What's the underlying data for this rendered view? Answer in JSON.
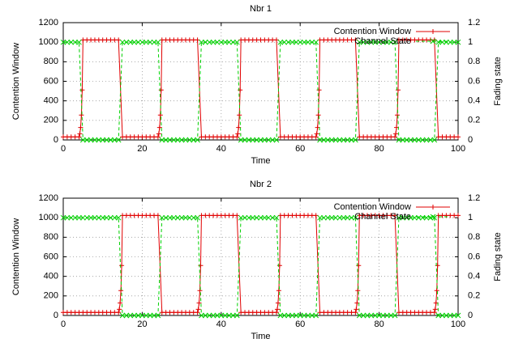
{
  "chart_data": [
    {
      "type": "line",
      "title": "Nbr 1",
      "xlabel": "Time",
      "ylabel": "Contention Window",
      "y2label": "Fading state",
      "xlim": [
        0,
        100
      ],
      "xticks": [
        0,
        20,
        40,
        60,
        80,
        100
      ],
      "ylim": [
        0,
        1200
      ],
      "yticks": [
        0,
        200,
        400,
        600,
        800,
        1000,
        1200
      ],
      "y2lim": [
        0,
        1.2
      ],
      "y2ticks": [
        0,
        0.2,
        0.4,
        0.6,
        0.8,
        1,
        1.2
      ],
      "grid": true,
      "legend": "upper right",
      "series": [
        {
          "name": "Contention Window",
          "color": "#e00000",
          "marker": "plus",
          "dash": false,
          "x": [
            0,
            1,
            2,
            3,
            4,
            4.2,
            4.4,
            4.6,
            4.8,
            5,
            6,
            7,
            8,
            9,
            10,
            11,
            12,
            13,
            14,
            15,
            16,
            17,
            18,
            19,
            20,
            21,
            22,
            23,
            24,
            24.2,
            24.4,
            24.6,
            24.8,
            25,
            26,
            27,
            28,
            29,
            30,
            31,
            32,
            33,
            34,
            35,
            36,
            37,
            38,
            39,
            40,
            41,
            42,
            43,
            44,
            44.2,
            44.4,
            44.6,
            44.8,
            45,
            46,
            47,
            48,
            49,
            50,
            51,
            52,
            53,
            54,
            55,
            56,
            57,
            58,
            59,
            60,
            61,
            62,
            63,
            64,
            64.2,
            64.4,
            64.6,
            64.8,
            65,
            66,
            67,
            68,
            69,
            70,
            71,
            72,
            73,
            74,
            75,
            76,
            77,
            78,
            79,
            80,
            81,
            82,
            83,
            84,
            84.2,
            84.4,
            84.6,
            84.8,
            85,
            86,
            87,
            88,
            89,
            90,
            91,
            92,
            93,
            94,
            95,
            96,
            97,
            98,
            99,
            100
          ],
          "values": [
            31,
            31,
            31,
            31,
            31,
            63,
            127,
            255,
            511,
            1023,
            1023,
            1023,
            1023,
            1023,
            1023,
            1023,
            1023,
            1023,
            1023,
            31,
            31,
            31,
            31,
            31,
            31,
            31,
            31,
            31,
            31,
            63,
            127,
            255,
            511,
            1023,
            1023,
            1023,
            1023,
            1023,
            1023,
            1023,
            1023,
            1023,
            1023,
            31,
            31,
            31,
            31,
            31,
            31,
            31,
            31,
            31,
            31,
            63,
            127,
            255,
            511,
            1023,
            1023,
            1023,
            1023,
            1023,
            1023,
            1023,
            1023,
            1023,
            1023,
            31,
            31,
            31,
            31,
            31,
            31,
            31,
            31,
            31,
            31,
            63,
            127,
            255,
            511,
            1023,
            1023,
            1023,
            1023,
            1023,
            1023,
            1023,
            1023,
            1023,
            1023,
            31,
            31,
            31,
            31,
            31,
            31,
            31,
            31,
            31,
            31,
            63,
            127,
            255,
            511,
            1023,
            1023,
            1023,
            1023,
            1023,
            1023,
            1023,
            1023,
            1023,
            1023,
            31,
            31,
            31,
            31,
            31,
            31
          ]
        },
        {
          "name": "Channel State",
          "color": "#00d000",
          "marker": "x",
          "dash": true,
          "axis": "y2",
          "x": [
            0,
            1,
            2,
            3,
            4,
            5,
            6,
            7,
            8,
            9,
            10,
            11,
            12,
            13,
            14,
            15,
            16,
            17,
            18,
            19,
            20,
            21,
            22,
            23,
            24,
            25,
            26,
            27,
            28,
            29,
            30,
            31,
            32,
            33,
            34,
            35,
            36,
            37,
            38,
            39,
            40,
            41,
            42,
            43,
            44,
            45,
            46,
            47,
            48,
            49,
            50,
            51,
            52,
            53,
            54,
            55,
            56,
            57,
            58,
            59,
            60,
            61,
            62,
            63,
            64,
            65,
            66,
            67,
            68,
            69,
            70,
            71,
            72,
            73,
            74,
            75,
            76,
            77,
            78,
            79,
            80,
            81,
            82,
            83,
            84,
            85,
            86,
            87,
            88,
            89,
            90,
            91,
            92,
            93,
            94,
            95,
            96,
            97,
            98,
            99,
            100
          ],
          "values": [
            1,
            1,
            1,
            1,
            1,
            0,
            0,
            0,
            0,
            0,
            0,
            0,
            0,
            0,
            0,
            1,
            1,
            1,
            1,
            1,
            1,
            1,
            1,
            1,
            1,
            0,
            0,
            0,
            0,
            0,
            0,
            0,
            0,
            0,
            0,
            1,
            1,
            1,
            1,
            1,
            1,
            1,
            1,
            1,
            1,
            0,
            0,
            0,
            0,
            0,
            0,
            0,
            0,
            0,
            0,
            1,
            1,
            1,
            1,
            1,
            1,
            1,
            1,
            1,
            1,
            0,
            0,
            0,
            0,
            0,
            0,
            0,
            0,
            0,
            0,
            1,
            1,
            1,
            1,
            1,
            1,
            1,
            1,
            1,
            1,
            0,
            0,
            0,
            0,
            0,
            0,
            0,
            0,
            0,
            0,
            1,
            1,
            1,
            1,
            1,
            1
          ]
        }
      ]
    },
    {
      "type": "line",
      "title": "Nbr 2",
      "xlabel": "Time",
      "ylabel": "Contention Window",
      "y2label": "Fading state",
      "xlim": [
        0,
        100
      ],
      "xticks": [
        0,
        20,
        40,
        60,
        80,
        100
      ],
      "ylim": [
        0,
        1200
      ],
      "yticks": [
        0,
        200,
        400,
        600,
        800,
        1000,
        1200
      ],
      "y2lim": [
        0,
        1.2
      ],
      "y2ticks": [
        0,
        0.2,
        0.4,
        0.6,
        0.8,
        1,
        1.2
      ],
      "grid": true,
      "legend": "upper right",
      "series": [
        {
          "name": "Contention Window",
          "color": "#e00000",
          "marker": "plus",
          "dash": false,
          "x": [
            0,
            1,
            2,
            3,
            4,
            5,
            6,
            7,
            8,
            9,
            10,
            11,
            12,
            13,
            14,
            14.2,
            14.4,
            14.6,
            14.8,
            15,
            16,
            17,
            18,
            19,
            20,
            21,
            22,
            23,
            24,
            25,
            26,
            27,
            28,
            29,
            30,
            31,
            32,
            33,
            34,
            34.2,
            34.4,
            34.6,
            34.8,
            35,
            36,
            37,
            38,
            39,
            40,
            41,
            42,
            43,
            44,
            45,
            46,
            47,
            48,
            49,
            50,
            51,
            52,
            53,
            54,
            54.2,
            54.4,
            54.6,
            54.8,
            55,
            56,
            57,
            58,
            59,
            60,
            61,
            62,
            63,
            64,
            65,
            66,
            67,
            68,
            69,
            70,
            71,
            72,
            73,
            74,
            74.2,
            74.4,
            74.6,
            74.8,
            75,
            76,
            77,
            78,
            79,
            80,
            81,
            82,
            83,
            84,
            85,
            86,
            87,
            88,
            89,
            90,
            91,
            92,
            93,
            94,
            94.2,
            94.4,
            94.6,
            94.8,
            95,
            96,
            97,
            98,
            99,
            100
          ],
          "values": [
            31,
            31,
            31,
            31,
            31,
            31,
            31,
            31,
            31,
            31,
            31,
            31,
            31,
            31,
            31,
            63,
            127,
            255,
            511,
            1023,
            1023,
            1023,
            1023,
            1023,
            1023,
            1023,
            1023,
            1023,
            1023,
            31,
            31,
            31,
            31,
            31,
            31,
            31,
            31,
            31,
            31,
            63,
            127,
            255,
            511,
            1023,
            1023,
            1023,
            1023,
            1023,
            1023,
            1023,
            1023,
            1023,
            1023,
            31,
            31,
            31,
            31,
            31,
            31,
            31,
            31,
            31,
            31,
            63,
            127,
            255,
            511,
            1023,
            1023,
            1023,
            1023,
            1023,
            1023,
            1023,
            1023,
            1023,
            1023,
            31,
            31,
            31,
            31,
            31,
            31,
            31,
            31,
            31,
            31,
            63,
            127,
            255,
            511,
            1023,
            1023,
            1023,
            1023,
            1023,
            1023,
            1023,
            1023,
            1023,
            1023,
            31,
            31,
            31,
            31,
            31,
            31,
            31,
            31,
            31,
            31,
            63,
            127,
            255,
            511,
            1023,
            1023,
            1023,
            1023,
            1023,
            1023
          ]
        },
        {
          "name": "Channel State",
          "color": "#00d000",
          "marker": "x",
          "dash": true,
          "axis": "y2",
          "x": [
            0,
            1,
            2,
            3,
            4,
            5,
            6,
            7,
            8,
            9,
            10,
            11,
            12,
            13,
            14,
            15,
            16,
            17,
            18,
            19,
            20,
            21,
            22,
            23,
            24,
            25,
            26,
            27,
            28,
            29,
            30,
            31,
            32,
            33,
            34,
            35,
            36,
            37,
            38,
            39,
            40,
            41,
            42,
            43,
            44,
            45,
            46,
            47,
            48,
            49,
            50,
            51,
            52,
            53,
            54,
            55,
            56,
            57,
            58,
            59,
            60,
            61,
            62,
            63,
            64,
            65,
            66,
            67,
            68,
            69,
            70,
            71,
            72,
            73,
            74,
            75,
            76,
            77,
            78,
            79,
            80,
            81,
            82,
            83,
            84,
            85,
            86,
            87,
            88,
            89,
            90,
            91,
            92,
            93,
            94,
            95,
            96,
            97,
            98,
            99,
            100
          ],
          "values": [
            1,
            1,
            1,
            1,
            1,
            1,
            1,
            1,
            1,
            1,
            1,
            1,
            1,
            1,
            1,
            0,
            0,
            0,
            0,
            0,
            0,
            0,
            0,
            0,
            0,
            1,
            1,
            1,
            1,
            1,
            1,
            1,
            1,
            1,
            1,
            0,
            0,
            0,
            0,
            0,
            0,
            0,
            0,
            0,
            0,
            1,
            1,
            1,
            1,
            1,
            1,
            1,
            1,
            1,
            1,
            0,
            0,
            0,
            0,
            0,
            0,
            0,
            0,
            0,
            0,
            1,
            1,
            1,
            1,
            1,
            1,
            1,
            1,
            1,
            1,
            0,
            0,
            0,
            0,
            0,
            0,
            0,
            0,
            0,
            0,
            1,
            1,
            1,
            1,
            1,
            1,
            1,
            1,
            1,
            1,
            0,
            0,
            0,
            0,
            0,
            0
          ]
        }
      ]
    }
  ]
}
